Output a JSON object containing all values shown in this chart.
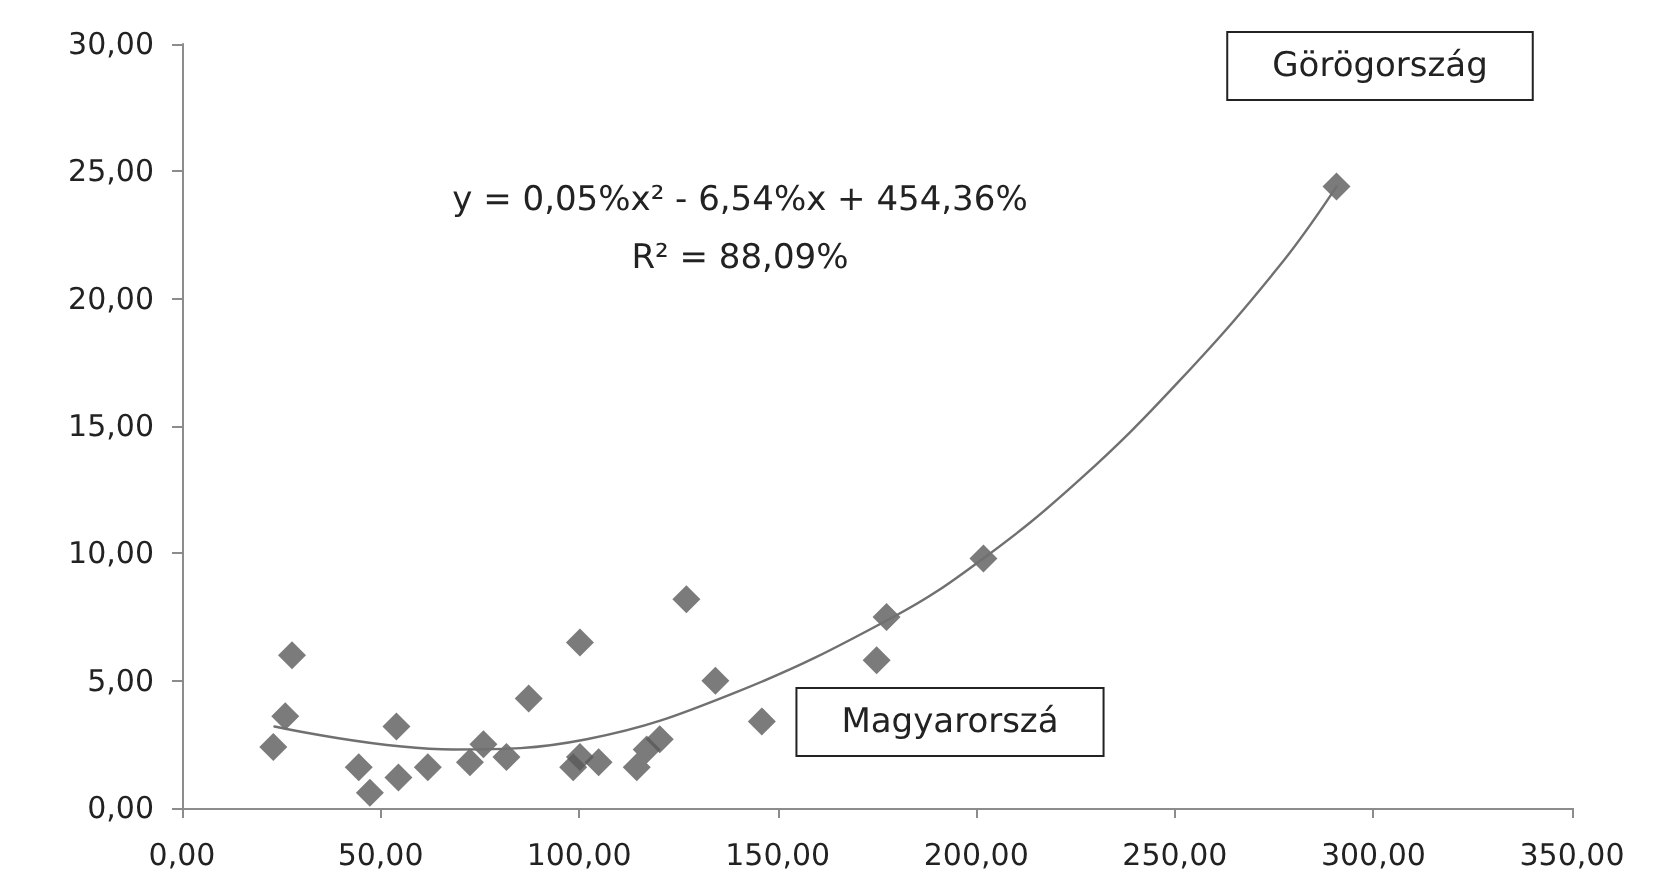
{
  "chart_data": {
    "type": "scatter",
    "marker": "diamond",
    "grid": false,
    "xlim": [
      0,
      350
    ],
    "ylim": [
      0,
      30
    ],
    "xticks": [
      {
        "value": 0,
        "label": "0,00"
      },
      {
        "value": 50,
        "label": "50,00"
      },
      {
        "value": 100,
        "label": "100,00"
      },
      {
        "value": 150,
        "label": "150,00"
      },
      {
        "value": 200,
        "label": "200,00"
      },
      {
        "value": 250,
        "label": "250,00"
      },
      {
        "value": 300,
        "label": "300,00"
      },
      {
        "value": 350,
        "label": "350,00"
      }
    ],
    "yticks": [
      {
        "value": 0,
        "label": "0,00"
      },
      {
        "value": 5,
        "label": "5,00"
      },
      {
        "value": 10,
        "label": "10,00"
      },
      {
        "value": 15,
        "label": "15,00"
      },
      {
        "value": 20,
        "label": "20,00"
      },
      {
        "value": 25,
        "label": "25,00"
      },
      {
        "value": 30,
        "label": "30,00"
      }
    ],
    "series": [
      {
        "color": "#5a5a5a",
        "x": [
          23.0,
          26.0,
          27.7,
          44.5,
          47.3,
          54.0,
          54.5,
          61.9,
          72.5,
          75.9,
          81.7,
          87.3,
          98.5,
          100.2,
          100.2,
          104.9,
          114.5,
          117.0,
          120.3,
          127.0,
          134.3,
          146.0,
          174.9,
          177.4,
          201.8,
          290.7
        ],
        "values": [
          2.4,
          3.6,
          6.0,
          1.6,
          0.6,
          3.2,
          1.2,
          1.6,
          1.8,
          2.5,
          2.0,
          4.3,
          1.6,
          2.0,
          6.5,
          1.8,
          1.6,
          2.3,
          2.7,
          8.2,
          5.0,
          3.4,
          5.8,
          7.5,
          9.8,
          24.4
        ]
      },
      {
        "type": "line",
        "color": "#707070",
        "marker": "none",
        "x": [
          23.3,
          68.3,
          101.9,
          138.8,
          179.1,
          200.9,
          226.1,
          251.3,
          276.4,
          290.7
        ],
        "values": [
          3.2,
          2.3,
          2.7,
          4.5,
          7.5,
          9.7,
          12.9,
          16.8,
          21.3,
          24.4
        ]
      }
    ],
    "annotations": [
      "y = 0,05%x² - 6,54%x + 454,36%",
      "R² = 88,09%",
      "Görögország",
      "Magyarorszá"
    ]
  }
}
